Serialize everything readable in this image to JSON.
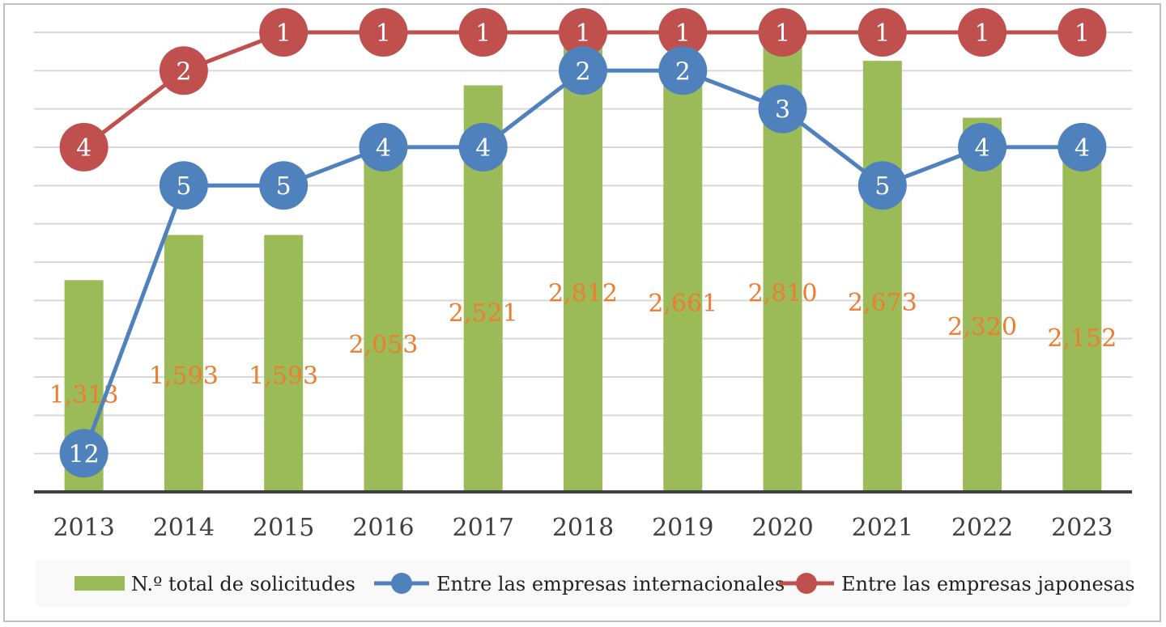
{
  "chart_data": {
    "type": "bar",
    "categories": [
      "2013",
      "2014",
      "2015",
      "2016",
      "2017",
      "2018",
      "2019",
      "2020",
      "2021",
      "2022",
      "2023"
    ],
    "series": [
      {
        "name": "N.º total de solicitudes",
        "type": "bar",
        "color": "#9bbb59",
        "values": [
          1313,
          1593,
          1593,
          2053,
          2521,
          2812,
          2661,
          2810,
          2673,
          2320,
          2152
        ],
        "labels": [
          "1,313",
          "1,593",
          "1,593",
          "2,053",
          "2,521",
          "2,812",
          "2,661",
          "2,810",
          "2,673",
          "2,320",
          "2,152"
        ]
      },
      {
        "name": "Entre las empresas internacionales",
        "type": "line",
        "color": "#4f81bd",
        "values": [
          12,
          5,
          5,
          4,
          4,
          2,
          2,
          3,
          5,
          4,
          4
        ]
      },
      {
        "name": "Entre las empresas japonesas",
        "type": "line",
        "color": "#c0504d",
        "values": [
          4,
          2,
          1,
          1,
          1,
          1,
          1,
          1,
          1,
          1,
          1
        ]
      }
    ],
    "label_color": "#ed7d31",
    "grid": true,
    "legend": "bottom"
  }
}
